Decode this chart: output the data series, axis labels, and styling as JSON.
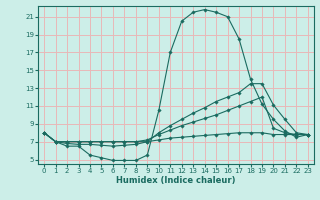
{
  "title": "",
  "xlabel": "Humidex (Indice chaleur)",
  "ylabel": "",
  "bg_color": "#cceee8",
  "grid_color": "#e8b8b8",
  "line_color": "#1a6b60",
  "marker_color": "#1a6b60",
  "xlim": [
    -0.5,
    23.5
  ],
  "ylim": [
    4.5,
    22.2
  ],
  "xticks": [
    0,
    1,
    2,
    3,
    4,
    5,
    6,
    7,
    8,
    9,
    10,
    11,
    12,
    13,
    14,
    15,
    16,
    17,
    18,
    19,
    20,
    21,
    22,
    23
  ],
  "yticks": [
    5,
    7,
    9,
    11,
    13,
    15,
    17,
    19,
    21
  ],
  "series": [
    {
      "x": [
        0,
        1,
        2,
        3,
        4,
        5,
        6,
        7,
        8,
        9,
        10,
        11,
        12,
        13,
        14,
        15,
        16,
        17,
        18,
        19,
        20,
        21,
        22,
        23
      ],
      "y": [
        8,
        7,
        6.5,
        6.5,
        5.5,
        5.2,
        4.9,
        4.9,
        4.9,
        5.5,
        10.5,
        17,
        20.5,
        21.5,
        21.8,
        21.5,
        21,
        18.5,
        14,
        11.2,
        9.5,
        8.2,
        7.5,
        7.8
      ]
    },
    {
      "x": [
        0,
        1,
        2,
        3,
        4,
        5,
        6,
        7,
        8,
        9,
        10,
        11,
        12,
        13,
        14,
        15,
        16,
        17,
        18,
        19,
        20,
        21,
        22,
        23
      ],
      "y": [
        8,
        7,
        6.8,
        6.7,
        6.7,
        6.6,
        6.5,
        6.6,
        6.7,
        7.0,
        8.0,
        8.8,
        9.5,
        10.2,
        10.8,
        11.5,
        12.0,
        12.5,
        13.5,
        13.5,
        11.1,
        9.5,
        8.0,
        7.8
      ]
    },
    {
      "x": [
        0,
        1,
        2,
        3,
        4,
        5,
        6,
        7,
        8,
        9,
        10,
        11,
        12,
        13,
        14,
        15,
        16,
        17,
        18,
        19,
        20,
        21,
        22,
        23
      ],
      "y": [
        8,
        7,
        7,
        7,
        7,
        7,
        7,
        7,
        7,
        7.2,
        7.8,
        8.3,
        8.8,
        9.2,
        9.6,
        10.0,
        10.5,
        11.0,
        11.5,
        12.0,
        8.5,
        8.0,
        7.8,
        7.8
      ]
    },
    {
      "x": [
        0,
        1,
        2,
        3,
        4,
        5,
        6,
        7,
        8,
        9,
        10,
        11,
        12,
        13,
        14,
        15,
        16,
        17,
        18,
        19,
        20,
        21,
        22,
        23
      ],
      "y": [
        8,
        7,
        7,
        7,
        7,
        7,
        7,
        7,
        7,
        7,
        7.2,
        7.4,
        7.5,
        7.6,
        7.7,
        7.8,
        7.9,
        8.0,
        8.0,
        8.0,
        7.8,
        7.8,
        7.8,
        7.8
      ]
    }
  ]
}
